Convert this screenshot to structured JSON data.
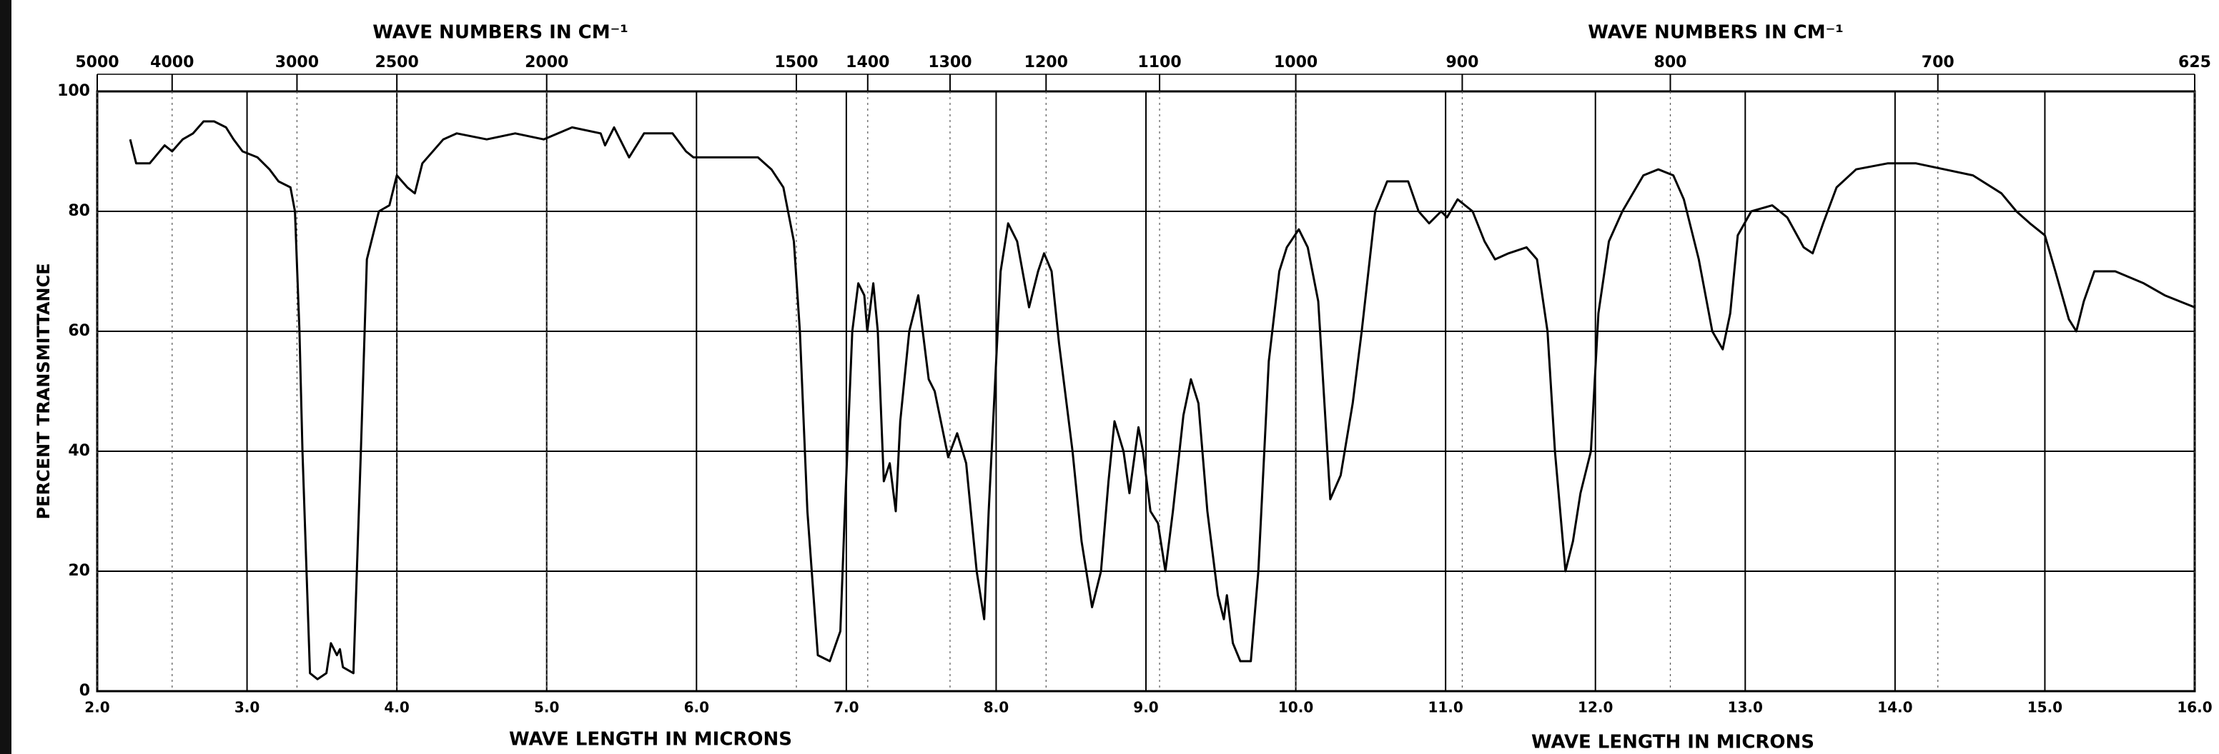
{
  "chart_data": {
    "type": "line",
    "y_label": "PERCENT TRANSMITTANCE",
    "x_labels": [
      "WAVE LENGTH IN MICRONS",
      "WAVE LENGTH IN MICRONS"
    ],
    "x2_labels": [
      "WAVE NUMBERS IN CM⁻¹",
      "WAVE NUMBERS IN CM⁻¹"
    ],
    "xlim": [
      2.0,
      16.0
    ],
    "xticks": [
      {
        "value": 2,
        "label": "2.0"
      },
      {
        "value": 3,
        "label": "3.0"
      },
      {
        "value": 4,
        "label": "4.0"
      },
      {
        "value": 5,
        "label": "5.0"
      },
      {
        "value": 6,
        "label": "6.0"
      },
      {
        "value": 7,
        "label": "7.0"
      },
      {
        "value": 8,
        "label": "8.0"
      },
      {
        "value": 9,
        "label": "9.0"
      },
      {
        "value": 10,
        "label": "10.0"
      },
      {
        "value": 11,
        "label": "11.0"
      },
      {
        "value": 12,
        "label": "12.0"
      },
      {
        "value": 13,
        "label": "13.0"
      },
      {
        "value": 14,
        "label": "14.0"
      },
      {
        "value": 15,
        "label": "15.0"
      },
      {
        "value": 16,
        "label": "16.0"
      }
    ],
    "x2ticks": [
      5000,
      4000,
      3000,
      2500,
      2000,
      1500,
      1400,
      1300,
      1200,
      1100,
      1000,
      900,
      800,
      700,
      625
    ],
    "ylim": [
      0,
      100
    ],
    "yticks": [
      0,
      20,
      40,
      60,
      80,
      100
    ],
    "grid": true,
    "x": [
      2.22,
      2.26,
      2.35,
      2.45,
      2.5,
      2.57,
      2.64,
      2.71,
      2.78,
      2.86,
      2.91,
      2.97,
      3.07,
      3.15,
      3.21,
      3.29,
      3.32,
      3.35,
      3.37,
      3.42,
      3.47,
      3.53,
      3.56,
      3.6,
      3.62,
      3.64,
      3.71,
      3.76,
      3.8,
      3.88,
      3.95,
      4.0,
      4.07,
      4.12,
      4.17,
      4.31,
      4.4,
      4.6,
      4.79,
      4.98,
      5.17,
      5.36,
      5.39,
      5.45,
      5.55,
      5.65,
      5.84,
      5.93,
      5.98,
      6.12,
      6.41,
      6.5,
      6.58,
      6.65,
      6.69,
      6.74,
      6.81,
      6.89,
      6.96,
      6.99,
      7.04,
      7.08,
      7.12,
      7.14,
      7.18,
      7.21,
      7.25,
      7.29,
      7.33,
      7.36,
      7.42,
      7.48,
      7.55,
      7.59,
      7.68,
      7.74,
      7.8,
      7.87,
      7.92,
      7.95,
      8.03,
      8.08,
      8.14,
      8.22,
      8.28,
      8.32,
      8.37,
      8.42,
      8.51,
      8.57,
      8.64,
      8.7,
      8.75,
      8.79,
      8.85,
      8.89,
      8.95,
      8.98,
      9.03,
      9.08,
      9.13,
      9.18,
      9.25,
      9.3,
      9.35,
      9.41,
      9.48,
      9.52,
      9.54,
      9.58,
      9.63,
      9.7,
      9.75,
      9.82,
      9.89,
      9.94,
      10.02,
      10.08,
      10.15,
      10.23,
      10.3,
      10.38,
      10.44,
      10.53,
      10.61,
      10.75,
      10.82,
      10.89,
      10.97,
      11.01,
      11.08,
      11.18,
      11.26,
      11.33,
      11.42,
      11.54,
      11.61,
      11.68,
      11.73,
      11.8,
      11.85,
      11.9,
      11.97,
      12.02,
      12.09,
      12.18,
      12.32,
      12.42,
      12.52,
      12.59,
      12.69,
      12.78,
      12.85,
      12.9,
      12.95,
      13.04,
      13.18,
      13.28,
      13.39,
      13.45,
      13.52,
      13.61,
      13.74,
      13.95,
      14.14,
      14.33,
      14.52,
      14.71,
      14.81,
      14.9,
      15.0,
      15.07,
      15.16,
      15.21,
      15.26,
      15.33,
      15.47,
      15.66,
      15.8,
      16.0
    ],
    "series": [
      {
        "color": "#000000",
        "values": [
          92,
          88,
          88,
          91,
          90,
          92,
          93,
          95,
          95,
          94,
          92,
          90,
          89,
          87,
          85,
          84,
          80,
          60,
          40,
          3,
          2,
          3,
          8,
          6,
          7,
          4,
          3,
          40,
          72,
          80,
          81,
          86,
          84,
          83,
          88,
          92,
          93,
          92,
          93,
          92,
          94,
          93,
          91,
          94,
          89,
          93,
          93,
          90,
          89,
          89,
          89,
          87,
          84,
          75,
          60,
          30,
          6,
          5,
          10,
          30,
          60,
          68,
          66,
          60,
          68,
          60,
          35,
          38,
          30,
          45,
          60,
          66,
          52,
          50,
          39,
          43,
          38,
          20,
          12,
          30,
          70,
          78,
          75,
          64,
          70,
          73,
          70,
          58,
          40,
          25,
          14,
          20,
          35,
          45,
          40,
          33,
          44,
          40,
          30,
          28,
          20,
          30,
          46,
          52,
          48,
          30,
          16,
          12,
          16,
          8,
          5,
          5,
          20,
          55,
          70,
          74,
          77,
          74,
          65,
          32,
          36,
          48,
          60,
          80,
          85,
          85,
          80,
          78,
          80,
          79,
          82,
          80,
          75,
          72,
          73,
          74,
          72,
          60,
          40,
          20,
          25,
          33,
          40,
          63,
          75,
          80,
          86,
          87,
          86,
          82,
          72,
          60,
          57,
          63,
          76,
          80,
          81,
          79,
          74,
          73,
          78,
          84,
          87,
          88,
          88,
          87,
          86,
          83,
          80,
          78,
          76,
          70,
          62,
          60,
          65,
          70,
          70,
          68,
          66,
          64
        ]
      }
    ]
  }
}
